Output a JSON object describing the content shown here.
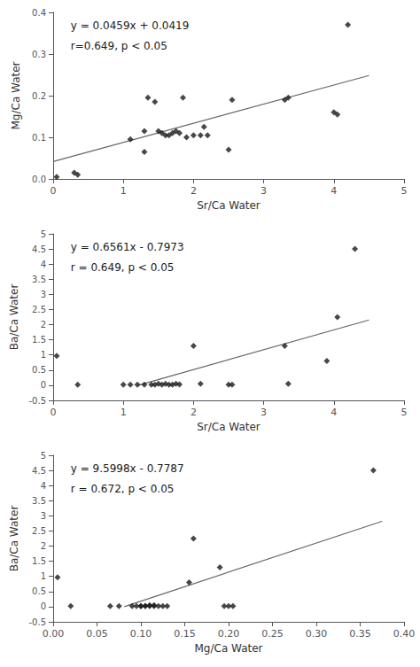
{
  "chart_data": [
    {
      "type": "scatter",
      "xlabel": "Sr/Ca Water",
      "ylabel": "Mg/Ca Water",
      "annotations": [
        "y = 0.0459x + 0.0419",
        "r=0.649, p < 0.05"
      ],
      "xlim": [
        0,
        5
      ],
      "ylim": [
        0,
        0.4
      ],
      "xticks": [
        0,
        1,
        2,
        3,
        4,
        5
      ],
      "yticks": [
        {
          "value": 0,
          "label": "0.0"
        },
        0.1,
        0.2,
        0.3,
        0.4
      ],
      "grid": false,
      "series": [
        {
          "type": "scatter",
          "color": "#1a1a1a",
          "marker": "diamond",
          "x": [
            0.05,
            0.3,
            0.35,
            1.1,
            1.3,
            1.3,
            1.35,
            1.45,
            1.5,
            1.55,
            1.6,
            1.65,
            1.7,
            1.75,
            1.8,
            1.85,
            1.9,
            2.0,
            2.1,
            2.15,
            2.2,
            2.5,
            2.55,
            3.3,
            3.35,
            4.0,
            4.05,
            4.2
          ],
          "values": [
            0.005,
            0.015,
            0.01,
            0.095,
            0.115,
            0.065,
            0.195,
            0.185,
            0.115,
            0.11,
            0.105,
            0.105,
            0.11,
            0.115,
            0.11,
            0.195,
            0.1,
            0.105,
            0.105,
            0.125,
            0.105,
            0.07,
            0.19,
            0.19,
            0.195,
            0.16,
            0.155,
            0.37
          ]
        },
        {
          "type": "line",
          "color": "#666666",
          "x": [
            0,
            4.5
          ],
          "values": [
            0.0419,
            0.24845
          ]
        }
      ]
    },
    {
      "type": "scatter",
      "xlabel": "Sr/Ca Water",
      "ylabel": "Ba/Ca Water",
      "annotations": [
        "y = 0.6561x - 0.7973",
        "r = 0.649, p < 0.05"
      ],
      "xlim": [
        0,
        5
      ],
      "ylim": [
        -0.5,
        5
      ],
      "xticks": [
        0,
        1,
        2,
        3,
        4,
        5
      ],
      "yticks": [
        -0.5,
        0,
        0.5,
        1,
        1.5,
        2,
        2.5,
        3,
        3.5,
        4,
        4.5,
        5
      ],
      "grid": false,
      "series": [
        {
          "type": "scatter",
          "color": "#1a1a1a",
          "marker": "diamond",
          "x": [
            0.05,
            0.35,
            1.0,
            1.1,
            1.2,
            1.3,
            1.4,
            1.45,
            1.5,
            1.55,
            1.6,
            1.65,
            1.7,
            1.75,
            1.8,
            2.0,
            2.1,
            2.5,
            2.55,
            3.3,
            3.35,
            3.9,
            4.05,
            4.3
          ],
          "values": [
            0.97,
            0.02,
            0.02,
            0.02,
            0.02,
            0.02,
            0.02,
            0.02,
            0.05,
            0.02,
            0.05,
            0.02,
            0.02,
            0.05,
            0.03,
            1.3,
            0.05,
            0.02,
            0.02,
            1.3,
            0.05,
            0.8,
            2.25,
            4.5
          ]
        },
        {
          "type": "line",
          "color": "#666666",
          "x": [
            1.215,
            4.5
          ],
          "values": [
            -0.0001385,
            2.15515
          ]
        }
      ]
    },
    {
      "type": "scatter",
      "xlabel": "Mg/Ca Water",
      "ylabel": "Ba/Ca Water",
      "annotations": [
        "y = 9.5998x - 0.7787",
        "r = 0.672, p < 0.05"
      ],
      "xlim": [
        0,
        0.4
      ],
      "ylim": [
        -0.5,
        5
      ],
      "xticks": [
        {
          "value": 0,
          "label": "0.00"
        },
        0.05,
        {
          "value": 0.1,
          "label": "0.10"
        },
        0.15,
        {
          "value": 0.2,
          "label": "0.20"
        },
        0.25,
        {
          "value": 0.3,
          "label": "0.30"
        },
        0.35,
        {
          "value": 0.4,
          "label": "0.40"
        }
      ],
      "yticks": [
        -0.5,
        0,
        0.5,
        1,
        1.5,
        2,
        2.5,
        3,
        3.5,
        4,
        4.5,
        5
      ],
      "grid": false,
      "series": [
        {
          "type": "scatter",
          "color": "#1a1a1a",
          "marker": "diamond",
          "x": [
            0.005,
            0.02,
            0.065,
            0.075,
            0.09,
            0.095,
            0.1,
            0.1,
            0.105,
            0.105,
            0.11,
            0.11,
            0.115,
            0.115,
            0.12,
            0.125,
            0.13,
            0.155,
            0.16,
            0.19,
            0.195,
            0.2,
            0.205,
            0.365
          ],
          "values": [
            0.97,
            0.02,
            0.02,
            0.02,
            0.02,
            0.02,
            0.02,
            0.02,
            0.02,
            0.03,
            0.02,
            0.05,
            0.02,
            0.05,
            0.02,
            0.02,
            0.02,
            0.8,
            2.25,
            1.3,
            0.02,
            0.02,
            0.02,
            4.5
          ]
        },
        {
          "type": "line",
          "color": "#666666",
          "x": [
            0.0811,
            0.375
          ],
          "values": [
            -0.00015622,
            2.821225
          ]
        }
      ]
    }
  ]
}
